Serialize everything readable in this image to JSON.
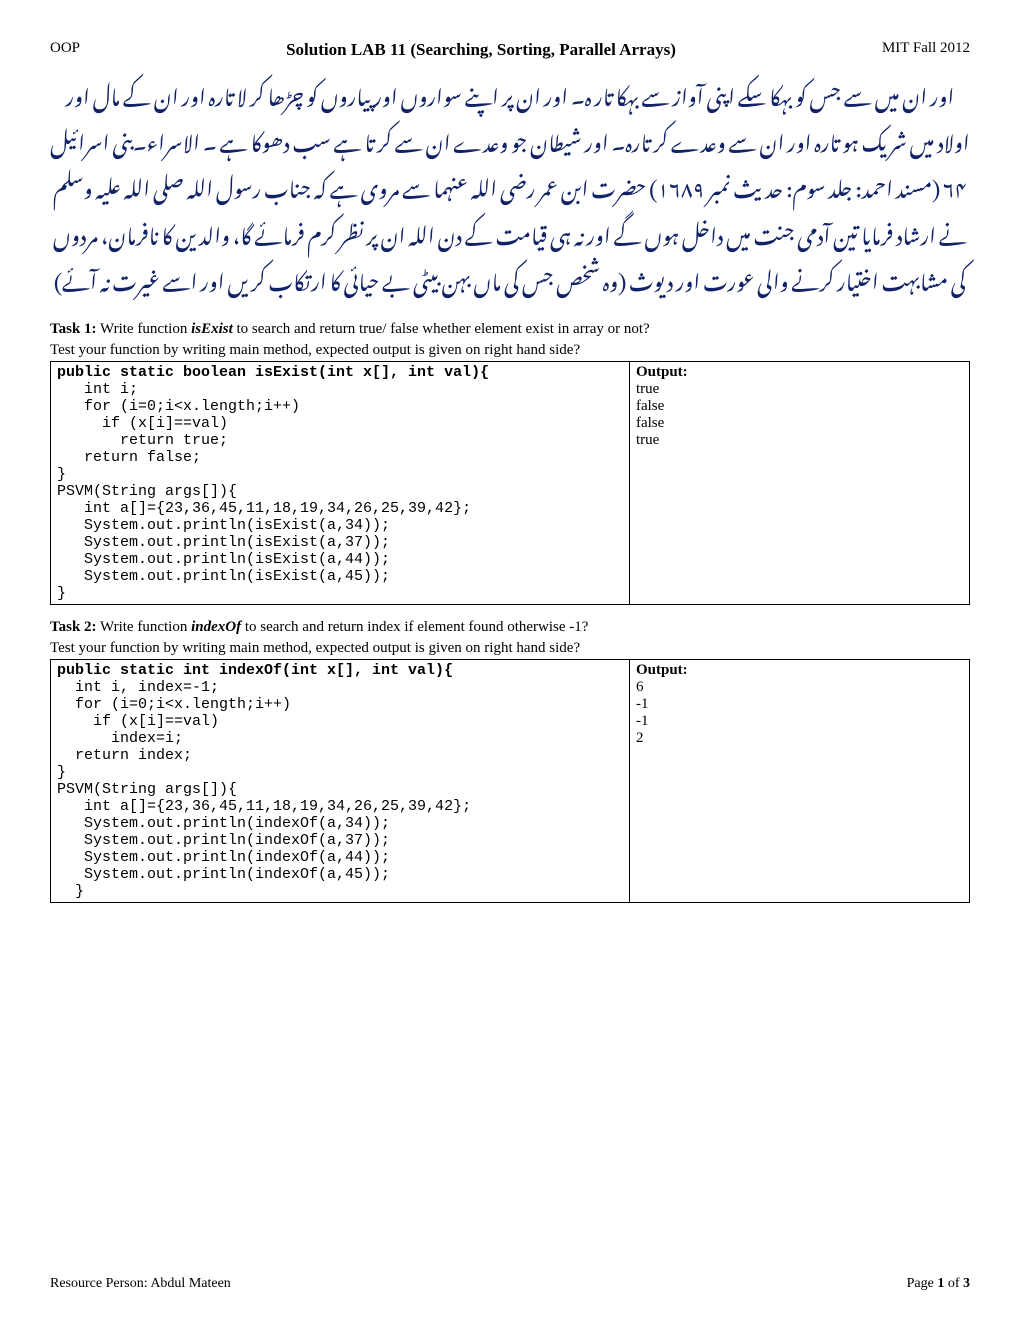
{
  "header": {
    "left": "OOP",
    "center": "Solution LAB 11 (Searching, Sorting, Parallel Arrays)",
    "right": "MIT Fall 2012"
  },
  "urdu_text": "اور ان میں سے جس کو بہکا سکے اپنی آواز سے بہکا تار ہ۔ اور ان پر اپنے سواروں اور پیاروں کو چڑھا کر لا تارہ اور ان کے مال اور اولاد میں شریک ہو تارہ اور ان سے وعدے کر تارہ۔ اور شیطان جو وعدے ان سے کر تا ہے سب دھوکا ہے ۔ الاسراء۔بنی اسرائیل ۶۴\n(مسند احمد: جلد سوم: حدیث نمبر ۱۶۸۹) حضرت ابن عمر رضی اللہ عنہما سے مروی ہے کہ جناب رسول اللہ صلی اللہ علیہ وسلم نے ارشاد فرمایا تین آدمی جنت میں داخل ہوں گے اور نہ ہی قیامت کے دن اللہ ان پر نظر کرم فرمائے گا، والدین کا نافرمان، مردوں کی مشابہت اختیار کرنے والی عورت اور دیوث (وہ شخص جس کی ماں بہن بیٹی بے حیائی کا ارتکاب کریں اور اسے غیرت نہ آئے)",
  "task1": {
    "label": "Task 1:",
    "desc_before_fn": " Write function ",
    "fn": "isExist",
    "desc_after_fn": " to search and return true/ false whether element exist in array or not?",
    "test_line": "Test your function by writing main method, expected output is given on right hand side?",
    "code_sig": "public static boolean isExist(int x[], int val){",
    "code_body": "   int i;\n   for (i=0;i<x.length;i++)\n     if (x[i]==val)\n       return true;\n   return false;\n}\nPSVM(String args[]){\n   int a[]={23,36,45,11,18,19,34,26,25,39,42};\n   System.out.println(isExist(a,34));\n   System.out.println(isExist(a,37));\n   System.out.println(isExist(a,44));\n   System.out.println(isExist(a,45));\n}",
    "output_label": "Output:",
    "output": "true\nfalse\nfalse\ntrue"
  },
  "task2": {
    "label": "Task 2:",
    "desc_before_fn": " Write function ",
    "fn": "indexOf",
    "desc_after_fn": " to search and return index if element found otherwise -1?",
    "test_line": "Test your function by writing main method, expected output is given on right hand side?",
    "code_sig": "public static int indexOf(int x[], int val){",
    "code_body": "  int i, index=-1;\n  for (i=0;i<x.length;i++)\n    if (x[i]==val)\n      index=i;\n  return index;\n}\nPSVM(String args[]){\n   int a[]={23,36,45,11,18,19,34,26,25,39,42};\n   System.out.println(indexOf(a,34));\n   System.out.println(indexOf(a,37));\n   System.out.println(indexOf(a,44));\n   System.out.println(indexOf(a,45));\n  }",
    "output_label": "Output:",
    "output": "6\n-1\n-1\n2"
  },
  "footer": {
    "left": "Resource Person: Abdul Mateen",
    "right_prefix": "Page ",
    "page_cur": "1",
    "right_mid": " of ",
    "page_total": "3"
  }
}
